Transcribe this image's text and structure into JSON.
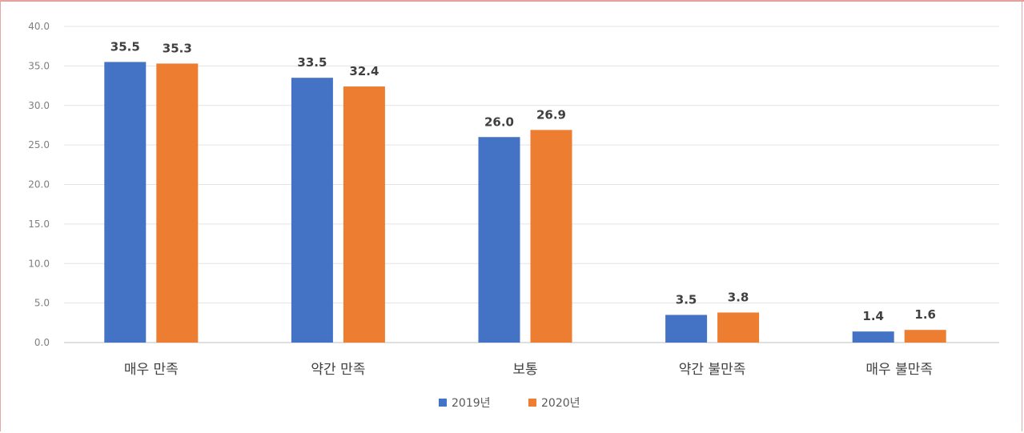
{
  "chart_data": {
    "type": "bar",
    "categories": [
      "매우 만족",
      "약간 만족",
      "보통",
      "약간 불만족",
      "매우 불만족"
    ],
    "series": [
      {
        "name": "2019년",
        "color": "#4472c4",
        "values": [
          35.5,
          33.5,
          26.0,
          3.5,
          1.4
        ],
        "labels": [
          "35.5",
          "33.5",
          "26.0",
          "3.5",
          "1.4"
        ]
      },
      {
        "name": "2020년",
        "color": "#ed7d31",
        "values": [
          35.3,
          32.4,
          26.9,
          3.8,
          1.6
        ],
        "labels": [
          "35.3",
          "32.4",
          "26.9",
          "3.8",
          "1.6"
        ]
      }
    ],
    "yticks": [
      "0.0",
      "5.0",
      "10.0",
      "15.0",
      "20.0",
      "25.0",
      "30.0",
      "35.0",
      "40.0"
    ],
    "ylim": [
      0,
      40
    ],
    "grid": true,
    "legend_position": "bottom"
  }
}
